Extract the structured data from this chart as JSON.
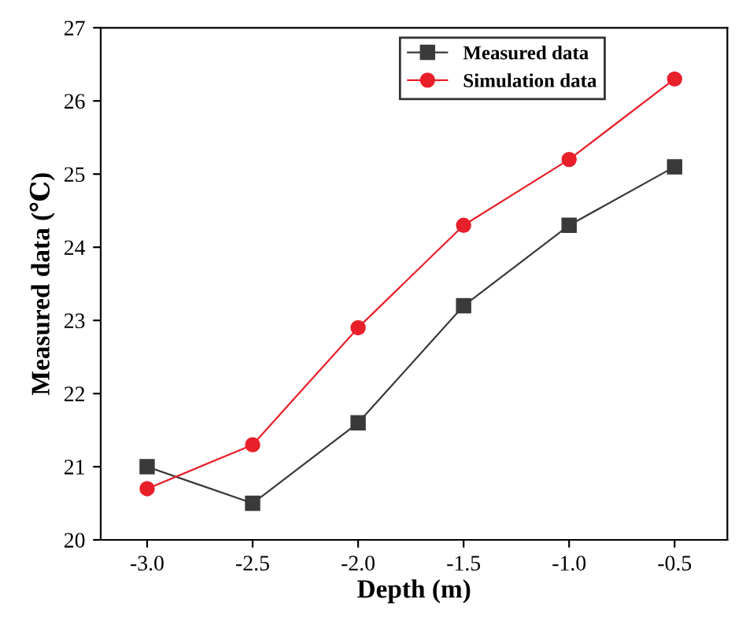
{
  "chart_data": {
    "type": "line",
    "xlabel": "Depth (m)",
    "ylabel": "Measured data (℃)",
    "x": [
      -3.0,
      -2.5,
      -2.0,
      -1.5,
      -1.0,
      -0.5
    ],
    "series": [
      {
        "name": "Measured data",
        "color": "#3a3a3a",
        "marker": "square",
        "values": [
          21.0,
          20.5,
          21.6,
          23.2,
          24.3,
          25.1
        ]
      },
      {
        "name": "Simulation data",
        "color": "#e8202a",
        "marker": "circle",
        "values": [
          20.7,
          21.3,
          22.9,
          24.3,
          25.2,
          26.3
        ]
      }
    ],
    "xlim": [
      -3.22,
      -0.25
    ],
    "xticks": [
      {
        "value": -3.0,
        "label": "-3.0"
      },
      {
        "value": -2.5,
        "label": "-2.5"
      },
      {
        "value": -2.0,
        "label": "-2.0"
      },
      {
        "value": -1.5,
        "label": "-1.5"
      },
      {
        "value": -1.0,
        "label": "-1.0"
      },
      {
        "value": -0.5,
        "label": "-0.5"
      }
    ],
    "ylim": [
      20,
      27
    ],
    "yticks": [
      20,
      21,
      22,
      23,
      24,
      25,
      26,
      27
    ],
    "grid": false,
    "legend": "top right",
    "line_style": "solid"
  }
}
